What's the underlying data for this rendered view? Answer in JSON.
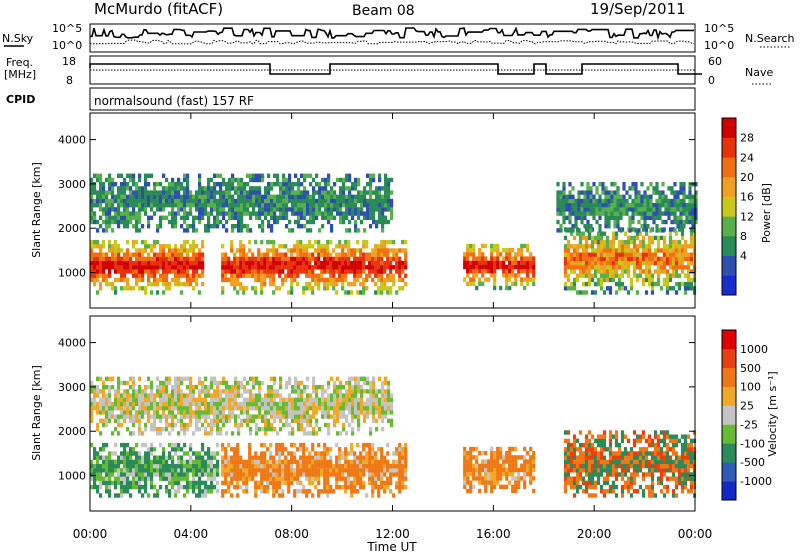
{
  "header": {
    "station": "McMurdo (fitACF)",
    "beam": "Beam 08",
    "date": "19/Sep/2011"
  },
  "side_labels": {
    "nsky": "N.Sky",
    "nsearch": "N.Search",
    "freq_line1": "Freq.",
    "freq_line2": "[MHz]",
    "nave": "Nave",
    "cpid": "CPID",
    "cpid_value": "normalsound (fast) 157 RF"
  },
  "noise_axis": {
    "left": [
      "10^5",
      "10^0"
    ],
    "right": [
      "10^5",
      "10^0"
    ]
  },
  "freq_axis": {
    "left": [
      "18",
      "8"
    ],
    "right": [
      "60",
      "0"
    ]
  },
  "x_axis": {
    "label": "Time UT",
    "ticks": [
      "00:00",
      "04:00",
      "08:00",
      "12:00",
      "16:00",
      "20:00",
      "00:00"
    ]
  },
  "colors": {
    "power": [
      "#1a2bd0",
      "#2f4fb0",
      "#2a8a58",
      "#57b04b",
      "#c8c81a",
      "#f0a020",
      "#f07010",
      "#e8320c",
      "#d00000"
    ],
    "velocity": [
      "#1428c8",
      "#2e5cb8",
      "#2a8a58",
      "#66bb33",
      "#c4c4c4",
      "#f0a828",
      "#f07814",
      "#e84010",
      "#e00000"
    ]
  },
  "chart_data": [
    {
      "type": "heatmap",
      "ylabel": "Slant Range [km]",
      "xlabel": "",
      "yticks": [
        "1000",
        "2000",
        "3000",
        "4000"
      ],
      "ylim": [
        200,
        4600
      ],
      "xlim_hours": [
        0,
        24
      ],
      "colorbar": {
        "label": "Power [dB]",
        "ticks": [
          "28",
          "24",
          "20",
          "16",
          "12",
          "8",
          "4"
        ]
      },
      "echo_bands_hours_km": [
        {
          "start": 0.0,
          "end": 4.5,
          "range_low": 600,
          "range_high": 1800,
          "dominant": "high"
        },
        {
          "start": 5.2,
          "end": 12.5,
          "range_low": 600,
          "range_high": 1800,
          "dominant": "high"
        },
        {
          "start": 14.8,
          "end": 17.6,
          "range_low": 700,
          "range_high": 1700,
          "dominant": "high"
        },
        {
          "start": 18.8,
          "end": 24.0,
          "range_low": 600,
          "range_high": 2100,
          "dominant": "mid"
        },
        {
          "start": 0.0,
          "end": 12.0,
          "range_low": 2000,
          "range_high": 3300,
          "dominant": "low"
        },
        {
          "start": 18.5,
          "end": 24.0,
          "range_low": 2000,
          "range_high": 3100,
          "dominant": "low"
        }
      ]
    },
    {
      "type": "heatmap",
      "ylabel": "Slant Range [km]",
      "xlabel": "Time UT",
      "yticks": [
        "1000",
        "2000",
        "3000",
        "4000"
      ],
      "ylim": [
        200,
        4600
      ],
      "xlim_hours": [
        0,
        24
      ],
      "colorbar": {
        "label": "Velocity [m s⁻¹]",
        "ticks": [
          "1000",
          "500",
          "100",
          "25",
          "-25",
          "-100",
          "-500",
          "-1000"
        ]
      },
      "echo_bands_hours_km": [
        {
          "start": 0.0,
          "end": 5.0,
          "range_low": 600,
          "range_high": 1800,
          "dominant": "toward"
        },
        {
          "start": 5.2,
          "end": 12.5,
          "range_low": 600,
          "range_high": 1800,
          "dominant": "away"
        },
        {
          "start": 14.8,
          "end": 17.6,
          "range_low": 700,
          "range_high": 1700,
          "dominant": "away"
        },
        {
          "start": 18.8,
          "end": 24.0,
          "range_low": 600,
          "range_high": 2100,
          "dominant": "mixed"
        },
        {
          "start": 0.0,
          "end": 12.0,
          "range_low": 2000,
          "range_high": 3300,
          "dominant": "near-zero"
        }
      ]
    }
  ]
}
